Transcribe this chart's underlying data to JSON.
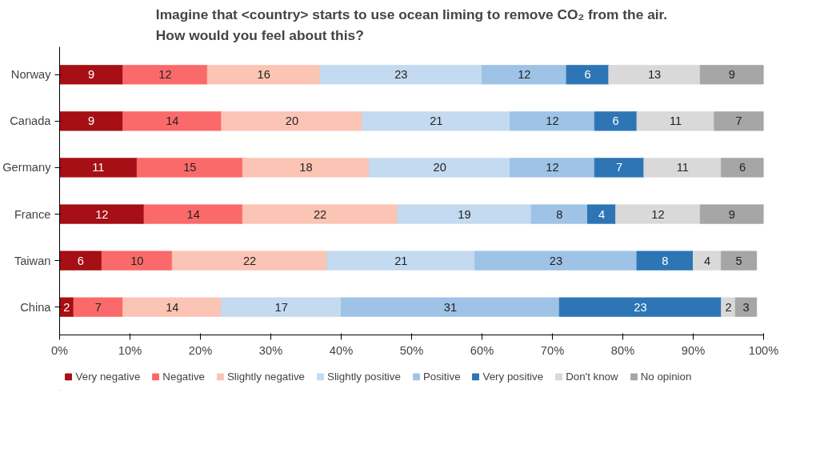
{
  "chart_data": {
    "type": "bar",
    "orientation": "horizontal",
    "stacked": true,
    "title": "Imagine that <country> starts to use ocean liming to remove CO₂ from the air.\nHow would you feel about this?",
    "categories": [
      "Norway",
      "Canada",
      "Germany",
      "France",
      "Taiwan",
      "China"
    ],
    "series": [
      {
        "name": "Very negative",
        "color": "#a50f15",
        "values": [
          9,
          9,
          11,
          12,
          6,
          2
        ]
      },
      {
        "name": "Negative",
        "color": "#fb6a6a",
        "values": [
          12,
          14,
          15,
          14,
          10,
          7
        ]
      },
      {
        "name": "Slightly negative",
        "color": "#fbc4b4",
        "values": [
          16,
          20,
          18,
          22,
          22,
          14
        ]
      },
      {
        "name": "Slightly positive",
        "color": "#c3daf0",
        "values": [
          23,
          21,
          20,
          19,
          21,
          17
        ]
      },
      {
        "name": "Positive",
        "color": "#9ec3e6",
        "values": [
          12,
          12,
          12,
          8,
          23,
          31
        ]
      },
      {
        "name": "Very positive",
        "color": "#2e75b6",
        "values": [
          6,
          6,
          7,
          4,
          8,
          23
        ]
      },
      {
        "name": "Don't know",
        "color": "#d9d9d9",
        "values": [
          13,
          11,
          11,
          12,
          4,
          2
        ]
      },
      {
        "name": "No opinion",
        "color": "#a6a6a6",
        "values": [
          9,
          7,
          6,
          9,
          5,
          3
        ]
      }
    ],
    "xlim": [
      0,
      100
    ],
    "xticks": [
      {
        "value": 0,
        "label": "0%"
      },
      {
        "value": 10,
        "label": "10%"
      },
      {
        "value": 20,
        "label": "20%"
      },
      {
        "value": 30,
        "label": "30%"
      },
      {
        "value": 40,
        "label": "40%"
      },
      {
        "value": 50,
        "label": "50%"
      },
      {
        "value": 60,
        "label": "60%"
      },
      {
        "value": 70,
        "label": "70%"
      },
      {
        "value": 80,
        "label": "80%"
      },
      {
        "value": 90,
        "label": "90%"
      },
      {
        "value": 100,
        "label": "100%"
      }
    ],
    "data_labels": true,
    "legend": "bottom",
    "grid": false
  }
}
